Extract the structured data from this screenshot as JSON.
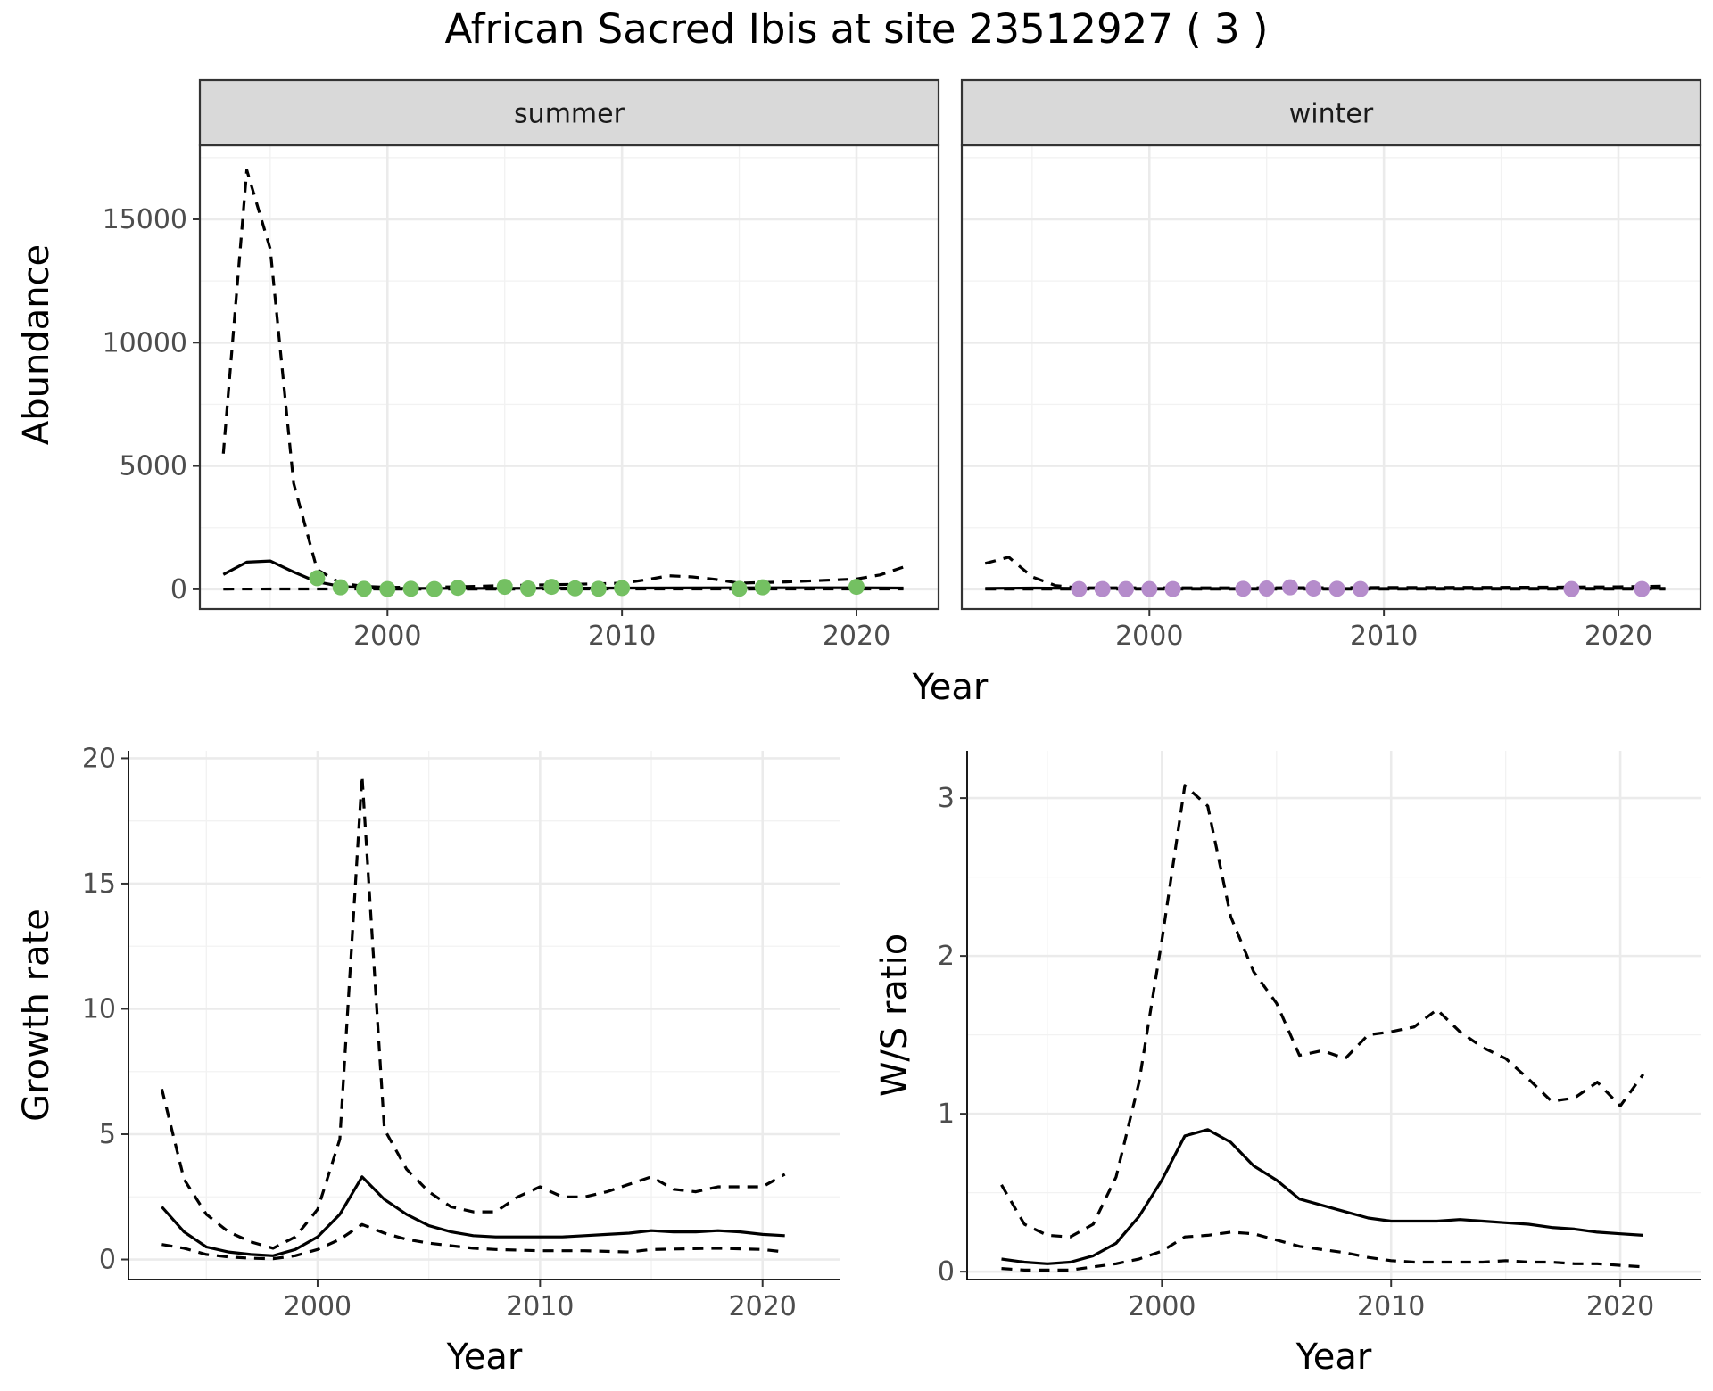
{
  "title": "African Sacred Ibis at site 23512927 ( 3 )",
  "colors": {
    "summer_points": "#74c062",
    "winter_points": "#b58ccb",
    "lines": "#000000",
    "strip_bg": "#d9d9d9"
  },
  "chart_data": [
    {
      "type": "line",
      "panel": "summer",
      "strip_label": "summer",
      "ylabel": "Abundance",
      "xlabel": "Year",
      "xlim": [
        1992,
        2023.5
      ],
      "ylim": [
        -800,
        18000
      ],
      "x_ticks": [
        2000,
        2010,
        2020
      ],
      "y_ticks": [
        0,
        5000,
        10000,
        15000
      ],
      "y_tick_labels": [
        "0",
        "5000",
        "10000",
        "15000"
      ],
      "series": [
        {
          "style": "solid",
          "x": [
            1993,
            1994,
            1995,
            1996,
            1997,
            1998,
            1999,
            2000,
            2002,
            2005,
            2010,
            2015,
            2020,
            2022
          ],
          "y": [
            600,
            1100,
            1150,
            700,
            300,
            120,
            60,
            40,
            40,
            40,
            50,
            60,
            60,
            50
          ]
        },
        {
          "style": "dashed-upper",
          "x": [
            1993,
            1994,
            1995,
            1996,
            1997,
            1998,
            1999,
            2000,
            2003,
            2005,
            2008,
            2010,
            2011,
            2012,
            2013,
            2014,
            2015,
            2017,
            2020,
            2021,
            2022
          ],
          "y": [
            5500,
            17000,
            13800,
            4300,
            800,
            250,
            120,
            80,
            100,
            150,
            200,
            250,
            380,
            550,
            500,
            400,
            250,
            300,
            420,
            580,
            900
          ]
        },
        {
          "style": "dashed-lower",
          "x": [
            1993,
            1996,
            1998,
            2000,
            2005,
            2010,
            2015,
            2020,
            2022
          ],
          "y": [
            10,
            15,
            15,
            10,
            10,
            15,
            10,
            15,
            15
          ]
        }
      ],
      "points": {
        "x": [
          1997,
          1998,
          1999,
          2000,
          2001,
          2002,
          2003,
          2005,
          2006,
          2007,
          2008,
          2009,
          2010,
          2015,
          2016,
          2020
        ],
        "y": [
          450,
          80,
          20,
          10,
          20,
          10,
          60,
          100,
          30,
          100,
          40,
          20,
          50,
          20,
          80,
          100
        ]
      }
    },
    {
      "type": "line",
      "panel": "winter",
      "strip_label": "winter",
      "xlabel": "Year",
      "xlim": [
        1992,
        2023.5
      ],
      "ylim": [
        -800,
        18000
      ],
      "x_ticks": [
        2000,
        2010,
        2020
      ],
      "series": [
        {
          "style": "solid",
          "x": [
            1993,
            1995,
            1997,
            2000,
            2005,
            2010,
            2015,
            2020,
            2022
          ],
          "y": [
            40,
            50,
            40,
            30,
            30,
            30,
            40,
            40,
            40
          ]
        },
        {
          "style": "dashed-upper",
          "x": [
            1993,
            1994,
            1995,
            1996,
            1997,
            2000,
            2005,
            2010,
            2015,
            2020,
            2022
          ],
          "y": [
            1050,
            1300,
            500,
            150,
            60,
            60,
            60,
            70,
            80,
            100,
            130
          ]
        },
        {
          "style": "dashed-lower",
          "x": [
            1993,
            2000,
            2010,
            2022
          ],
          "y": [
            5,
            5,
            5,
            5
          ]
        }
      ],
      "points": {
        "x": [
          1997,
          1998,
          1999,
          2000,
          2001,
          2004,
          2005,
          2006,
          2007,
          2008,
          2009,
          2018,
          2021
        ],
        "y": [
          10,
          10,
          10,
          10,
          10,
          20,
          30,
          80,
          30,
          20,
          10,
          10,
          10
        ]
      }
    },
    {
      "type": "line",
      "panel": "growth",
      "ylabel": "Growth rate",
      "xlabel": "Year",
      "xlim": [
        1991.5,
        2023.5
      ],
      "ylim": [
        -0.8,
        20.3
      ],
      "x_ticks": [
        2000,
        2010,
        2020
      ],
      "y_ticks": [
        0,
        5,
        10,
        15,
        20
      ],
      "y_tick_labels": [
        "0",
        "5",
        "10",
        "15",
        "20"
      ],
      "series": [
        {
          "style": "solid",
          "x": [
            1993,
            1994,
            1995,
            1996,
            1997,
            1998,
            1999,
            2000,
            2001,
            2002,
            2003,
            2004,
            2005,
            2006,
            2007,
            2008,
            2009,
            2010,
            2011,
            2012,
            2013,
            2014,
            2015,
            2016,
            2017,
            2018,
            2019,
            2020,
            2021
          ],
          "y": [
            2.1,
            1.1,
            0.5,
            0.3,
            0.2,
            0.15,
            0.4,
            0.9,
            1.8,
            3.3,
            2.4,
            1.8,
            1.35,
            1.1,
            0.95,
            0.9,
            0.9,
            0.9,
            0.9,
            0.95,
            1.0,
            1.05,
            1.15,
            1.1,
            1.1,
            1.15,
            1.1,
            1.0,
            0.95
          ]
        },
        {
          "style": "dashed-upper",
          "x": [
            1993,
            1994,
            1995,
            1996,
            1997,
            1998,
            1999,
            2000,
            2001,
            2002,
            2003,
            2004,
            2005,
            2006,
            2007,
            2008,
            2009,
            2010,
            2011,
            2012,
            2013,
            2014,
            2015,
            2016,
            2017,
            2018,
            2019,
            2020,
            2021
          ],
          "y": [
            6.8,
            3.2,
            1.8,
            1.1,
            0.7,
            0.45,
            0.9,
            2.0,
            4.8,
            19.3,
            5.2,
            3.6,
            2.7,
            2.1,
            1.9,
            1.9,
            2.5,
            2.9,
            2.5,
            2.5,
            2.7,
            3.0,
            3.3,
            2.8,
            2.7,
            2.9,
            2.9,
            2.9,
            3.4
          ]
        },
        {
          "style": "dashed-lower",
          "x": [
            1993,
            1994,
            1995,
            1996,
            1997,
            1998,
            1999,
            2000,
            2001,
            2002,
            2003,
            2004,
            2005,
            2006,
            2007,
            2008,
            2010,
            2012,
            2014,
            2015,
            2018,
            2020,
            2021
          ],
          "y": [
            0.6,
            0.45,
            0.2,
            0.1,
            0.05,
            0.03,
            0.15,
            0.4,
            0.8,
            1.4,
            1.05,
            0.8,
            0.65,
            0.55,
            0.45,
            0.4,
            0.35,
            0.35,
            0.3,
            0.4,
            0.45,
            0.4,
            0.3
          ]
        }
      ]
    },
    {
      "type": "line",
      "panel": "ratio",
      "ylabel": "W/S ratio",
      "xlabel": "Year",
      "xlim": [
        1991.5,
        2023.5
      ],
      "ylim": [
        -0.05,
        3.3
      ],
      "x_ticks": [
        2000,
        2010,
        2020
      ],
      "y_ticks": [
        0,
        1,
        2,
        3
      ],
      "y_tick_labels": [
        "0",
        "1",
        "2",
        "3"
      ],
      "series": [
        {
          "style": "solid",
          "x": [
            1993,
            1994,
            1995,
            1996,
            1997,
            1998,
            1999,
            2000,
            2001,
            2002,
            2003,
            2004,
            2005,
            2006,
            2007,
            2008,
            2009,
            2010,
            2011,
            2012,
            2013,
            2014,
            2015,
            2016,
            2017,
            2018,
            2019,
            2020,
            2021
          ],
          "y": [
            0.08,
            0.06,
            0.05,
            0.06,
            0.1,
            0.18,
            0.35,
            0.58,
            0.86,
            0.9,
            0.82,
            0.67,
            0.58,
            0.46,
            0.42,
            0.38,
            0.34,
            0.32,
            0.32,
            0.32,
            0.33,
            0.32,
            0.31,
            0.3,
            0.28,
            0.27,
            0.25,
            0.24,
            0.23
          ]
        },
        {
          "style": "dashed-upper",
          "x": [
            1993,
            1994,
            1995,
            1996,
            1997,
            1998,
            1999,
            2000,
            2001,
            2002,
            2003,
            2004,
            2005,
            2006,
            2007,
            2008,
            2009,
            2010,
            2011,
            2012,
            2013,
            2014,
            2015,
            2016,
            2017,
            2018,
            2019,
            2020,
            2021
          ],
          "y": [
            0.55,
            0.3,
            0.23,
            0.22,
            0.3,
            0.6,
            1.2,
            2.1,
            3.08,
            2.95,
            2.25,
            1.9,
            1.7,
            1.37,
            1.4,
            1.35,
            1.5,
            1.52,
            1.55,
            1.66,
            1.52,
            1.42,
            1.35,
            1.22,
            1.08,
            1.1,
            1.2,
            1.05,
            1.25
          ]
        },
        {
          "style": "dashed-lower",
          "x": [
            1993,
            1994,
            1995,
            1996,
            1997,
            1998,
            1999,
            2000,
            2001,
            2002,
            2003,
            2004,
            2005,
            2006,
            2007,
            2008,
            2009,
            2010,
            2011,
            2012,
            2013,
            2014,
            2015,
            2016,
            2017,
            2018,
            2019,
            2020,
            2021
          ],
          "y": [
            0.02,
            0.01,
            0.01,
            0.01,
            0.03,
            0.05,
            0.08,
            0.13,
            0.22,
            0.23,
            0.25,
            0.24,
            0.2,
            0.16,
            0.14,
            0.12,
            0.09,
            0.07,
            0.06,
            0.06,
            0.06,
            0.06,
            0.07,
            0.06,
            0.06,
            0.05,
            0.05,
            0.04,
            0.03
          ]
        }
      ]
    }
  ]
}
